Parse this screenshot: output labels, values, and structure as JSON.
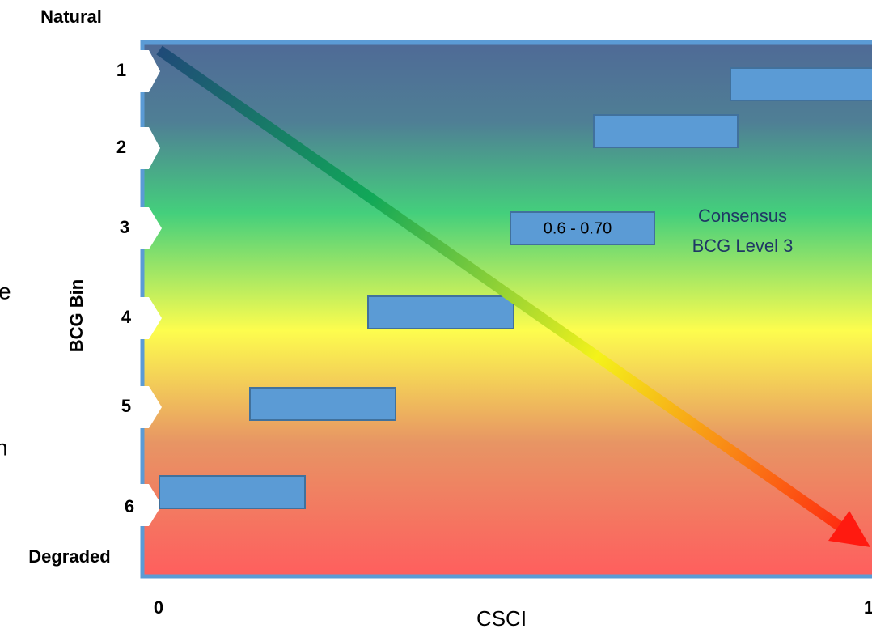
{
  "header": {
    "top_label": "Natural",
    "bottom_label": "Degraded"
  },
  "y_axis": {
    "title": "BCG Bin",
    "bins": [
      "1",
      "2",
      "3",
      "4",
      "5",
      "6"
    ]
  },
  "x_axis": {
    "title": "CSCI",
    "start": "0",
    "end": "1"
  },
  "box_label": "0.6 - 0.70",
  "annotation": {
    "line1": "Consensus",
    "line2": "BCG Level 3"
  },
  "cropped_text": [
    "e",
    "n"
  ]
}
